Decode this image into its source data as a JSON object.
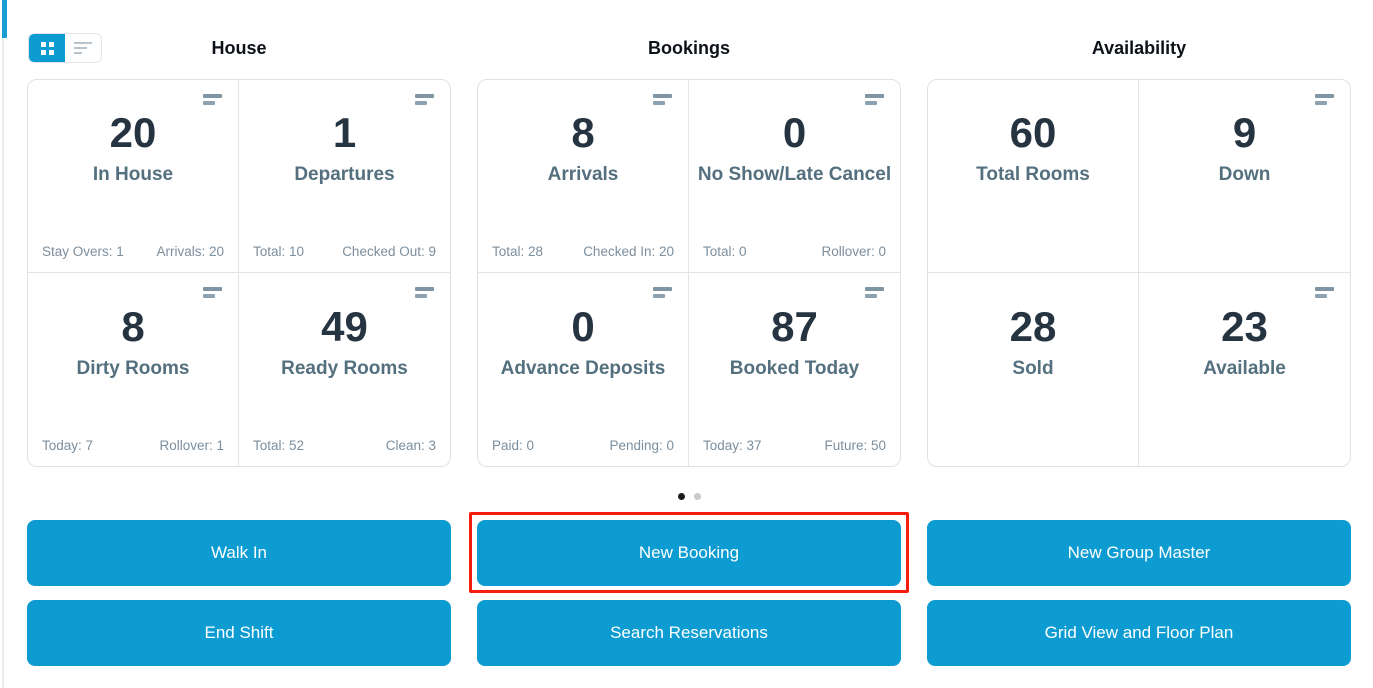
{
  "view_toggle": {
    "grid_icon": "grid-view",
    "list_icon": "list-view",
    "active": "grid-view"
  },
  "columns": [
    {
      "header": "House",
      "cards": [
        {
          "value": "20",
          "label": "In House",
          "footer_left": "Stay Overs: 1",
          "footer_right": "Arrivals: 20"
        },
        {
          "value": "1",
          "label": "Departures",
          "footer_left": "Total: 10",
          "footer_right": "Checked Out: 9"
        },
        {
          "value": "8",
          "label": "Dirty Rooms",
          "footer_left": "Today: 7",
          "footer_right": "Rollover: 1"
        },
        {
          "value": "49",
          "label": "Ready Rooms",
          "footer_left": "Total: 52",
          "footer_right": "Clean: 3"
        }
      ]
    },
    {
      "header": "Bookings",
      "cards": [
        {
          "value": "8",
          "label": "Arrivals",
          "footer_left": "Total: 28",
          "footer_right": "Checked In: 20"
        },
        {
          "value": "0",
          "label": "No Show/Late Cancel",
          "footer_left": "Total: 0",
          "footer_right": "Rollover: 0"
        },
        {
          "value": "0",
          "label": "Advance Deposits",
          "footer_left": "Paid: 0",
          "footer_right": "Pending: 0"
        },
        {
          "value": "87",
          "label": "Booked Today",
          "footer_left": "Today: 37",
          "footer_right": "Future: 50"
        }
      ]
    },
    {
      "header": "Availability",
      "cards": [
        {
          "value": "60",
          "label": "Total Rooms"
        },
        {
          "value": "9",
          "label": "Down"
        },
        {
          "value": "28",
          "label": "Sold"
        },
        {
          "value": "23",
          "label": "Available"
        }
      ]
    }
  ],
  "carousel": {
    "dot_count": 2,
    "active_index": 0
  },
  "buttons": [
    {
      "label": "Walk In"
    },
    {
      "label": "New Booking",
      "highlighted": true
    },
    {
      "label": "New Group Master"
    },
    {
      "label": "End Shift"
    },
    {
      "label": "Search Reservations"
    },
    {
      "label": "Grid View and Floor Plan"
    }
  ],
  "colors": {
    "accent_blue": "#0d9cd2",
    "highlight_red": "#f71c0c",
    "number_text": "#263340",
    "label_text": "#54707e",
    "subtext": "#7b8e9d"
  }
}
